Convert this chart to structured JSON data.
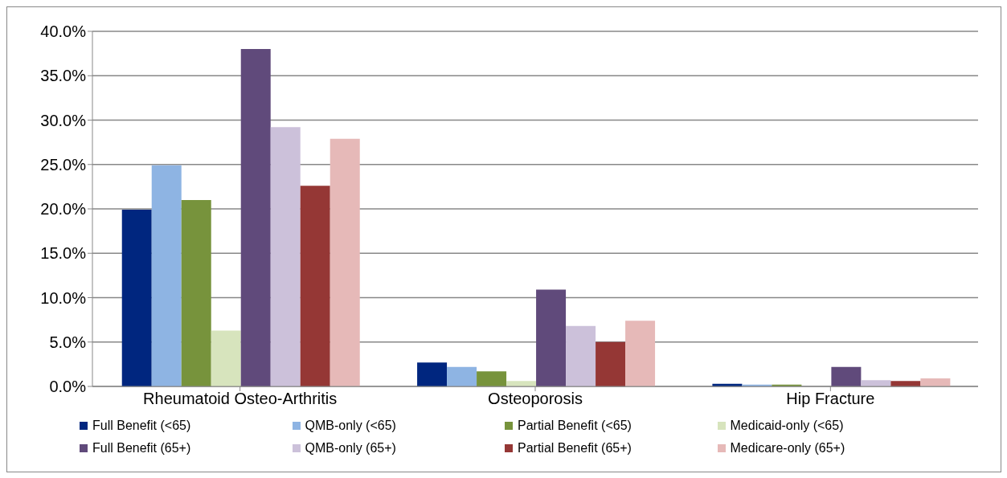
{
  "chart_data": {
    "type": "bar",
    "categories": [
      "Rheumatoid Osteo-Arthritis",
      "Osteoporosis",
      "Hip Fracture"
    ],
    "series": [
      {
        "name": "Full Benefit (<65)",
        "color": "#00267f",
        "values": [
          19.9,
          2.7,
          0.3
        ]
      },
      {
        "name": "QMB-only (<65)",
        "color": "#8eb4e3",
        "values": [
          24.9,
          2.2,
          0.2
        ]
      },
      {
        "name": "Partial Benefit (<65)",
        "color": "#77933c",
        "values": [
          21.0,
          1.7,
          0.2
        ]
      },
      {
        "name": "Medicaid-only (<65)",
        "color": "#d7e4bd",
        "values": [
          6.3,
          0.6,
          null
        ]
      },
      {
        "name": "Full Benefit (65+)",
        "color": "#604a7b",
        "values": [
          38.0,
          10.9,
          2.2
        ]
      },
      {
        "name": "QMB-only (65+)",
        "color": "#ccc1da",
        "values": [
          29.2,
          6.8,
          0.7
        ]
      },
      {
        "name": "Partial Benefit (65+)",
        "color": "#953735",
        "values": [
          22.6,
          5.0,
          0.6
        ]
      },
      {
        "name": "Medicare-only (65+)",
        "color": "#e6b9b8",
        "values": [
          27.9,
          7.4,
          0.9
        ]
      }
    ],
    "ylim": [
      0,
      40
    ],
    "yticks": [
      {
        "value": 0,
        "label": "0.0%"
      },
      {
        "value": 5,
        "label": "5.0%"
      },
      {
        "value": 10,
        "label": "10.0%"
      },
      {
        "value": 15,
        "label": "15.0%"
      },
      {
        "value": 20,
        "label": "20.0%"
      },
      {
        "value": 25,
        "label": "25.0%"
      },
      {
        "value": 30,
        "label": "30.0%"
      },
      {
        "value": 35,
        "label": "35.0%"
      },
      {
        "value": 40,
        "label": "40.0%"
      }
    ],
    "grid": "y",
    "legend": "bottom"
  }
}
